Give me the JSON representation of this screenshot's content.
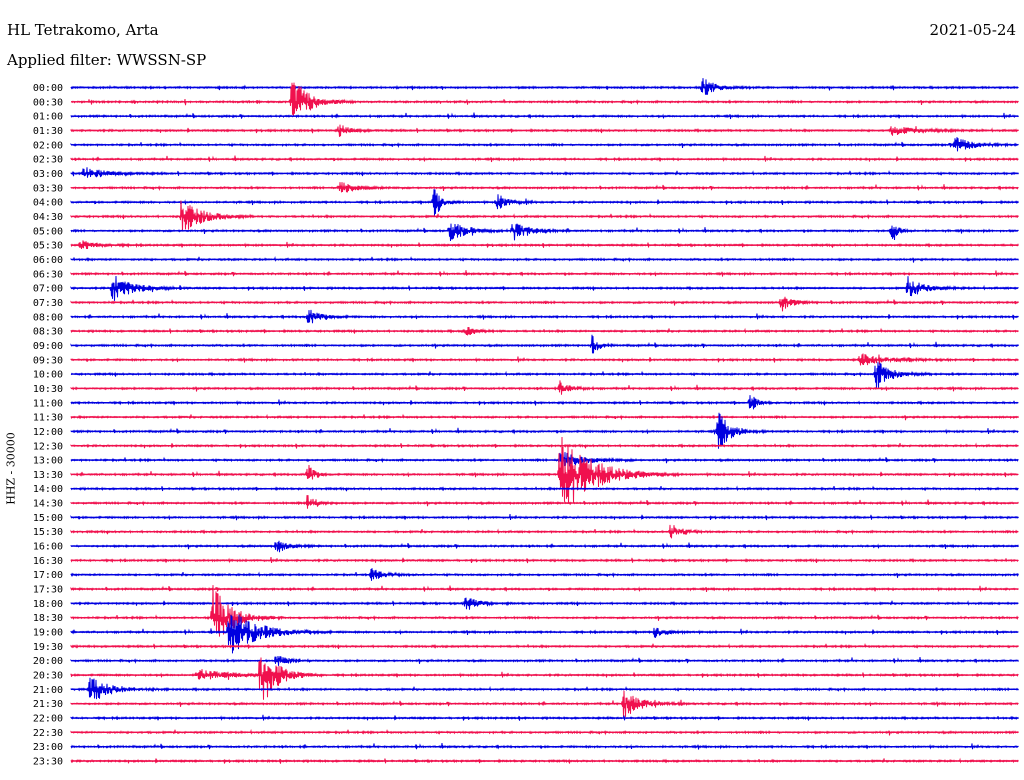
{
  "header": {
    "station": "HL Tetrakomo, Arta",
    "filter": "Applied filter: WWSSN-SP",
    "date": "2021-05-24"
  },
  "colors": {
    "trace_a": "#0000e0",
    "trace_b": "#f0114e"
  },
  "chart_data": {
    "type": "helicorder",
    "title": "HL Tetrakomo, Arta",
    "subtitle": "Applied filter: WWSSN-SP",
    "date": "2021-05-24",
    "ylabel": "HHZ - 30000",
    "row_interval_minutes": 30,
    "row_labels": [
      "00:00",
      "00:30",
      "01:00",
      "01:30",
      "02:00",
      "02:30",
      "03:00",
      "03:30",
      "04:00",
      "04:30",
      "05:00",
      "05:30",
      "06:00",
      "06:30",
      "07:00",
      "07:30",
      "08:00",
      "08:30",
      "09:00",
      "09:30",
      "10:00",
      "10:30",
      "11:00",
      "11:30",
      "12:00",
      "12:30",
      "13:00",
      "13:30",
      "14:00",
      "14:30",
      "15:00",
      "15:30",
      "16:00",
      "16:30",
      "17:00",
      "17:30",
      "18:00",
      "18:30",
      "19:00",
      "19:30",
      "20:00",
      "20:30",
      "21:00",
      "21:30",
      "22:00",
      "22:30",
      "23:00",
      "23:30"
    ],
    "trace_colors": [
      "#0000e0",
      "#f0114e"
    ],
    "events": [
      {
        "row": 0,
        "minute": 20.0,
        "amp": 0.8,
        "dur": 0.6
      },
      {
        "row": 1,
        "minute": 7.0,
        "amp": 2.0,
        "dur": 0.8
      },
      {
        "row": 3,
        "minute": 8.5,
        "amp": 0.5,
        "dur": 0.5
      },
      {
        "row": 3,
        "minute": 26.0,
        "amp": 0.4,
        "dur": 1.2
      },
      {
        "row": 4,
        "minute": 28.0,
        "amp": 0.7,
        "dur": 0.8
      },
      {
        "row": 6,
        "minute": 0.4,
        "amp": 0.5,
        "dur": 1.0
      },
      {
        "row": 7,
        "minute": 8.5,
        "amp": 0.6,
        "dur": 0.8
      },
      {
        "row": 8,
        "minute": 11.5,
        "amp": 1.2,
        "dur": 0.4
      },
      {
        "row": 8,
        "minute": 13.5,
        "amp": 0.7,
        "dur": 0.5
      },
      {
        "row": 9,
        "minute": 3.5,
        "amp": 1.6,
        "dur": 0.9
      },
      {
        "row": 10,
        "minute": 12.0,
        "amp": 0.8,
        "dur": 0.8
      },
      {
        "row": 10,
        "minute": 14.0,
        "amp": 0.8,
        "dur": 0.8
      },
      {
        "row": 10,
        "minute": 26.0,
        "amp": 0.9,
        "dur": 0.3
      },
      {
        "row": 11,
        "minute": 0.3,
        "amp": 0.4,
        "dur": 0.8
      },
      {
        "row": 14,
        "minute": 1.3,
        "amp": 1.1,
        "dur": 1.0
      },
      {
        "row": 14,
        "minute": 26.5,
        "amp": 0.8,
        "dur": 0.8
      },
      {
        "row": 15,
        "minute": 22.5,
        "amp": 0.7,
        "dur": 0.5
      },
      {
        "row": 16,
        "minute": 7.5,
        "amp": 0.7,
        "dur": 0.6
      },
      {
        "row": 17,
        "minute": 12.5,
        "amp": 0.4,
        "dur": 0.5
      },
      {
        "row": 18,
        "minute": 16.5,
        "amp": 0.9,
        "dur": 0.3
      },
      {
        "row": 19,
        "minute": 25.0,
        "amp": 0.5,
        "dur": 1.2
      },
      {
        "row": 20,
        "minute": 25.5,
        "amp": 1.2,
        "dur": 0.7
      },
      {
        "row": 21,
        "minute": 15.5,
        "amp": 0.6,
        "dur": 0.5
      },
      {
        "row": 22,
        "minute": 21.5,
        "amp": 0.9,
        "dur": 0.3
      },
      {
        "row": 24,
        "minute": 20.5,
        "amp": 1.6,
        "dur": 0.6
      },
      {
        "row": 26,
        "minute": 15.5,
        "amp": 0.9,
        "dur": 1.0
      },
      {
        "row": 27,
        "minute": 15.5,
        "amp": 3.5,
        "dur": 1.5
      },
      {
        "row": 27,
        "minute": 7.5,
        "amp": 1.0,
        "dur": 0.3
      },
      {
        "row": 29,
        "minute": 7.5,
        "amp": 0.8,
        "dur": 0.4
      },
      {
        "row": 31,
        "minute": 19.0,
        "amp": 0.7,
        "dur": 0.5
      },
      {
        "row": 32,
        "minute": 6.5,
        "amp": 0.6,
        "dur": 0.5
      },
      {
        "row": 34,
        "minute": 9.5,
        "amp": 0.5,
        "dur": 0.6
      },
      {
        "row": 36,
        "minute": 12.5,
        "amp": 0.6,
        "dur": 0.6
      },
      {
        "row": 37,
        "minute": 4.5,
        "amp": 2.6,
        "dur": 0.9
      },
      {
        "row": 38,
        "minute": 5.0,
        "amp": 2.0,
        "dur": 1.3
      },
      {
        "row": 38,
        "minute": 18.5,
        "amp": 0.6,
        "dur": 0.5
      },
      {
        "row": 40,
        "minute": 6.5,
        "amp": 0.5,
        "dur": 0.6
      },
      {
        "row": 41,
        "minute": 4.0,
        "amp": 0.5,
        "dur": 1.5
      },
      {
        "row": 41,
        "minute": 6.0,
        "amp": 2.5,
        "dur": 0.8
      },
      {
        "row": 42,
        "minute": 0.6,
        "amp": 1.0,
        "dur": 1.0
      },
      {
        "row": 43,
        "minute": 17.5,
        "amp": 1.2,
        "dur": 0.8
      }
    ]
  }
}
